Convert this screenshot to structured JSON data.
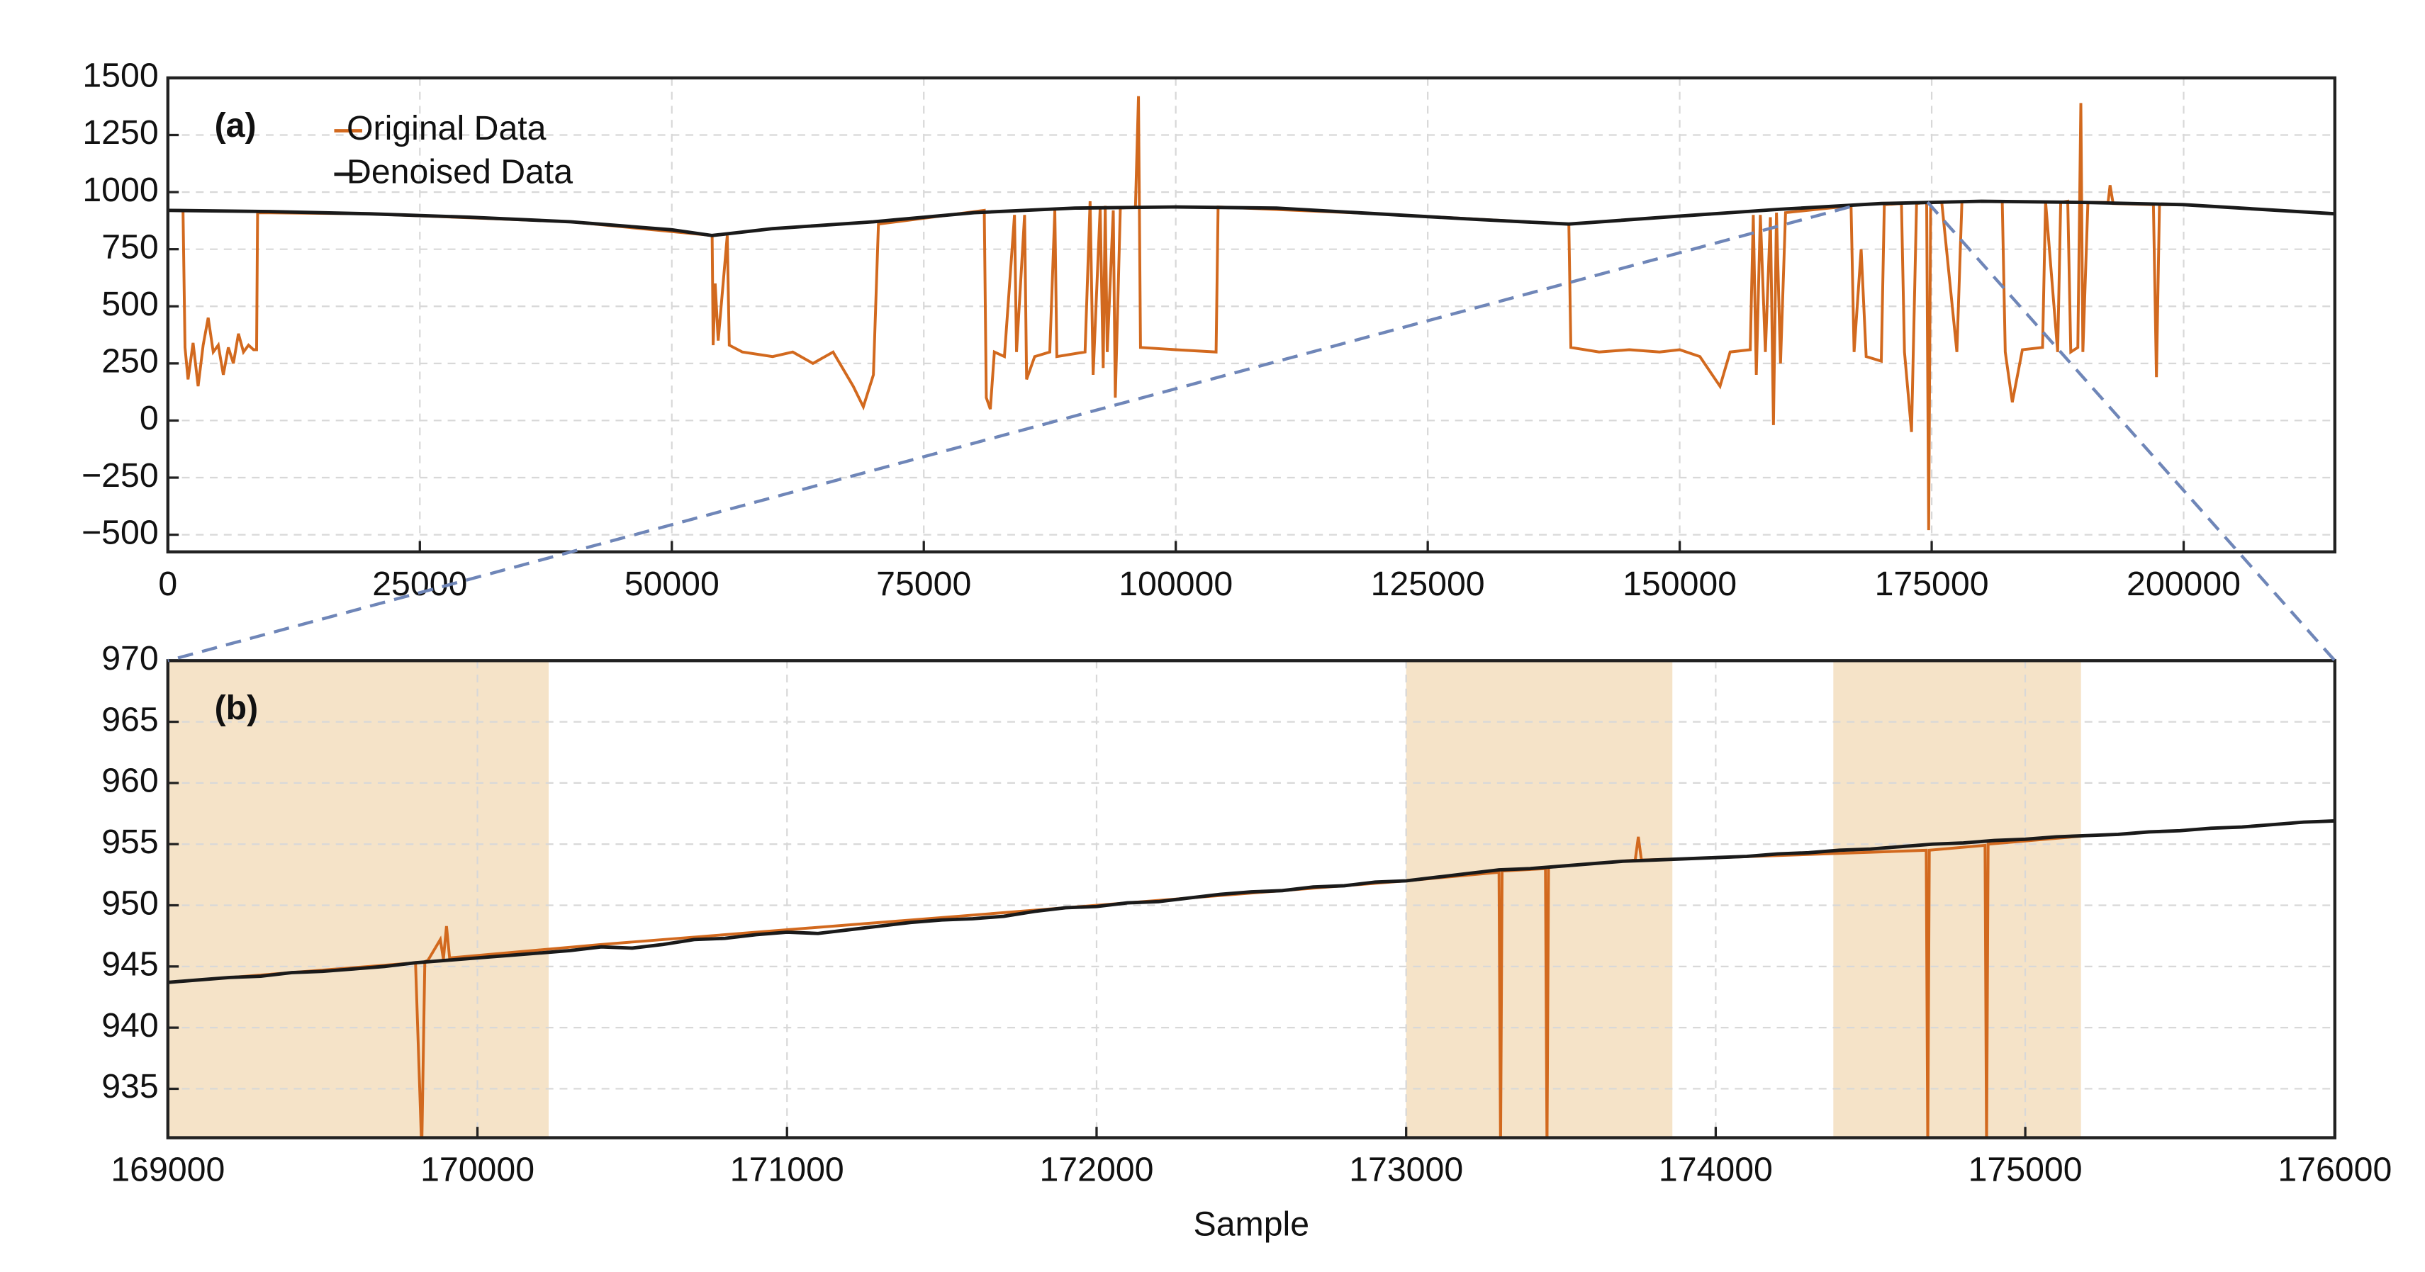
{
  "chart_data": [
    {
      "type": "line",
      "annotation": "(a)",
      "xlim": [
        0,
        215000
      ],
      "ylim": [
        -575,
        1500
      ],
      "xticks": [
        0,
        25000,
        50000,
        75000,
        100000,
        125000,
        150000,
        175000,
        200000
      ],
      "yticks": [
        {
          "value": -500,
          "label": "−500"
        },
        {
          "value": -250,
          "label": "−250"
        },
        0,
        250,
        500,
        750,
        1000,
        1250,
        1500
      ],
      "grid": true,
      "legend": "upper left",
      "series": [
        {
          "name": "Original Data",
          "color": "#d2691e",
          "x": [
            1500,
            1700,
            2000,
            2500,
            3000,
            3500,
            4000,
            4500,
            5000,
            5500,
            6000,
            6500,
            7000,
            7500,
            8000,
            8500,
            8800,
            8900,
            20000,
            40000,
            54000,
            54100,
            54300,
            54600,
            55500,
            55700,
            57000,
            60000,
            62000,
            64000,
            66000,
            68000,
            69000,
            70000,
            70500,
            81000,
            81200,
            81600,
            82000,
            83000,
            84000,
            84200,
            85000,
            85200,
            86000,
            87500,
            88000,
            88200,
            91000,
            91500,
            91800,
            92500,
            92800,
            93000,
            93200,
            93800,
            94000,
            94500,
            96000,
            96300,
            96500,
            100000,
            104000,
            104200,
            120000,
            139000,
            139200,
            142000,
            145000,
            148000,
            150000,
            152000,
            154000,
            155000,
            157000,
            157300,
            157600,
            158000,
            158500,
            159000,
            159300,
            159600,
            160000,
            160500,
            167000,
            167300,
            168000,
            168500,
            170000,
            170300,
            172000,
            172300,
            173000,
            173500,
            174500,
            174700,
            174900,
            176000,
            177500,
            178000,
            182000,
            182300,
            183000,
            184000,
            186000,
            186300,
            187500,
            187800,
            188500,
            188800,
            189500,
            189800,
            190000,
            190500,
            192500,
            192700,
            193000,
            197000,
            197300,
            197600,
            200000,
            215000
          ],
          "values": [
            920,
            320,
            180,
            340,
            150,
            330,
            450,
            300,
            330,
            200,
            320,
            250,
            380,
            300,
            330,
            310,
            310,
            910,
            905,
            870,
            810,
            330,
            600,
            350,
            810,
            330,
            300,
            280,
            300,
            250,
            300,
            150,
            60,
            200,
            860,
            920,
            100,
            50,
            300,
            280,
            900,
            300,
            900,
            180,
            280,
            300,
            920,
            280,
            300,
            960,
            200,
            930,
            230,
            940,
            300,
            920,
            100,
            930,
            935,
            1420,
            320,
            310,
            300,
            935,
            905,
            860,
            320,
            300,
            310,
            300,
            310,
            280,
            150,
            300,
            310,
            900,
            200,
            900,
            300,
            890,
            -20,
            910,
            250,
            910,
            940,
            300,
            750,
            280,
            260,
            945,
            950,
            300,
            -50,
            950,
            955,
            -480,
            955,
            955,
            300,
            958,
            960,
            300,
            80,
            310,
            320,
            958,
            300,
            955,
            960,
            300,
            320,
            1390,
            300,
            955,
            955,
            1030,
            950,
            945,
            190,
            945,
            945,
            905
          ]
        },
        {
          "name": "Denoised Data",
          "color": "#1a1a1a",
          "x": [
            0,
            10000,
            20000,
            30000,
            40000,
            50000,
            54000,
            60000,
            70000,
            80000,
            90000,
            100000,
            110000,
            120000,
            130000,
            139000,
            150000,
            160000,
            170000,
            180000,
            190000,
            200000,
            215000
          ],
          "values": [
            920,
            915,
            905,
            890,
            870,
            835,
            810,
            840,
            870,
            910,
            930,
            935,
            930,
            905,
            880,
            860,
            895,
            925,
            950,
            960,
            955,
            945,
            905
          ]
        }
      ]
    },
    {
      "type": "line",
      "annotation": "(b)",
      "xlabel": "Sample",
      "xlim": [
        169000,
        176000
      ],
      "ylim": [
        931,
        970
      ],
      "xticks": [
        169000,
        170000,
        171000,
        172000,
        173000,
        174000,
        175000,
        176000
      ],
      "yticks": [
        935,
        940,
        945,
        950,
        955,
        960,
        965,
        970
      ],
      "grid": true,
      "shade_color": "#f5e3c8",
      "shaded_regions": [
        [
          169000,
          170230
        ],
        [
          173000,
          173860
        ],
        [
          174380,
          175180
        ]
      ],
      "series": [
        {
          "name": "Original Data",
          "color": "#d2691e",
          "x": [
            169000,
            169800,
            169820,
            169830,
            169840,
            169880,
            169890,
            169900,
            169910,
            170400,
            173000,
            173300,
            173305,
            173310,
            173450,
            173455,
            173460,
            173740,
            173750,
            173760,
            173900,
            174680,
            174685,
            174690,
            174870,
            174875,
            174880,
            175200
          ],
          "values": [
            943.7,
            945.3,
            930,
            945.4,
            945.5,
            947.2,
            945.6,
            948.3,
            945.7,
            946.8,
            952.0,
            952.7,
            930,
            952.8,
            953.0,
            930,
            953.1,
            953.7,
            955.6,
            953.7,
            953.8,
            954.5,
            930,
            954.5,
            954.9,
            930,
            955.0,
            955.7
          ]
        },
        {
          "name": "Denoised Data",
          "color": "#1a1a1a",
          "x": [
            169000,
            169100,
            169200,
            169300,
            169400,
            169500,
            169600,
            169700,
            169800,
            169900,
            170000,
            170100,
            170200,
            170300,
            170400,
            170500,
            170600,
            170700,
            170800,
            170900,
            171000,
            171100,
            171200,
            171300,
            171400,
            171500,
            171600,
            171700,
            171800,
            171900,
            172000,
            172100,
            172200,
            172300,
            172400,
            172500,
            172600,
            172700,
            172800,
            172900,
            173000,
            173100,
            173200,
            173300,
            173400,
            173500,
            173600,
            173700,
            173800,
            173900,
            174000,
            174100,
            174200,
            174300,
            174400,
            174500,
            174600,
            174700,
            174800,
            174900,
            175000,
            175100,
            175200,
            175300,
            175400,
            175500,
            175600,
            175700,
            175800,
            175900,
            176000
          ],
          "values": [
            943.7,
            943.9,
            944.1,
            944.2,
            944.5,
            944.6,
            944.8,
            945.0,
            945.3,
            945.5,
            945.7,
            945.9,
            946.1,
            946.3,
            946.6,
            946.5,
            946.8,
            947.2,
            947.3,
            947.6,
            947.8,
            947.7,
            948.0,
            948.3,
            948.6,
            948.8,
            948.9,
            949.1,
            949.5,
            949.8,
            949.9,
            950.2,
            950.3,
            950.6,
            950.9,
            951.1,
            951.2,
            951.5,
            951.6,
            951.9,
            952.0,
            952.3,
            952.6,
            952.9,
            953.0,
            953.2,
            953.4,
            953.6,
            953.7,
            953.8,
            953.9,
            954.0,
            954.2,
            954.3,
            954.5,
            954.6,
            954.8,
            955.0,
            955.1,
            955.3,
            955.4,
            955.6,
            955.7,
            955.8,
            956.0,
            956.1,
            956.3,
            956.4,
            956.6,
            956.8,
            956.9
          ]
        }
      ]
    }
  ]
}
